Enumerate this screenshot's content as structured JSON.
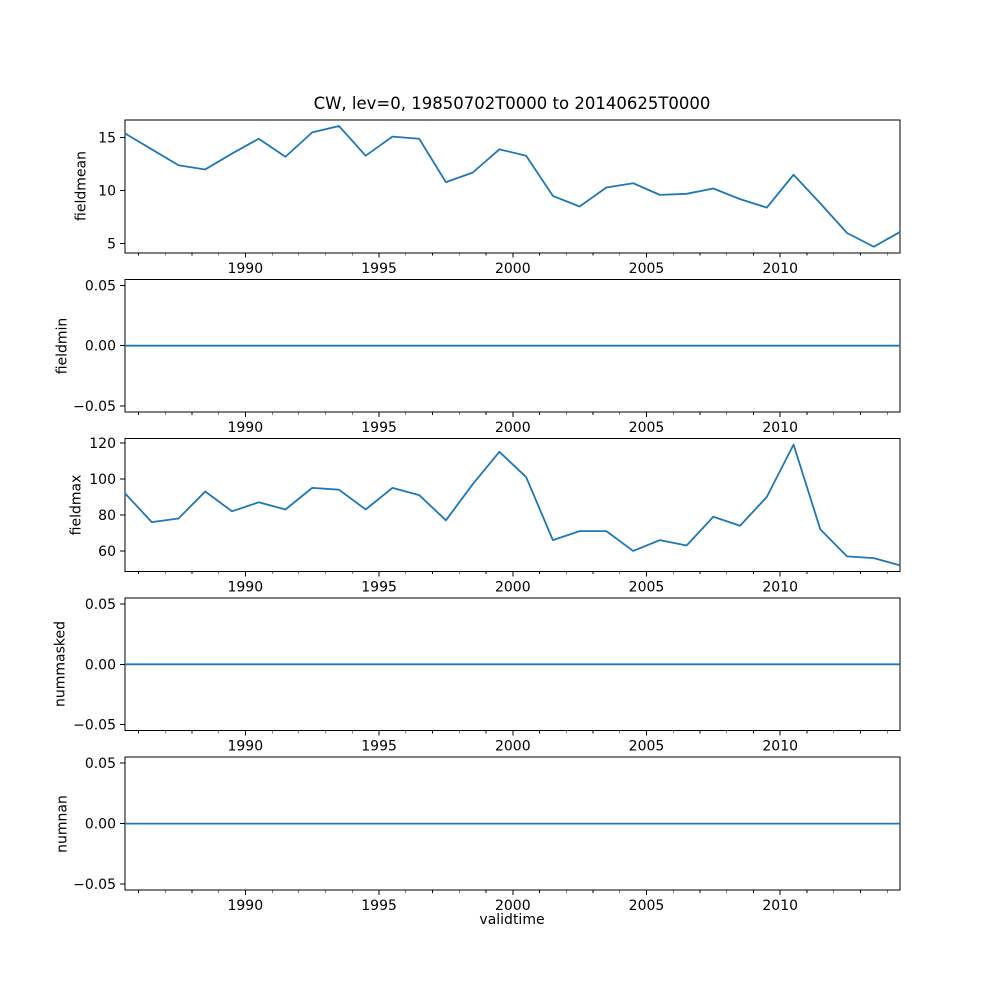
{
  "chart_data": {
    "type": "line",
    "title": "CW, lev=0, 19850702T0000 to 20140625T0000",
    "xlabel": "validtime",
    "line_color": "#1f77b4",
    "axis_color": "#000000",
    "background_color": "#ffffff",
    "grid": false,
    "legend_position": "none",
    "x": [
      1985.5,
      1986.5,
      1987.5,
      1988.5,
      1989.5,
      1990.5,
      1991.5,
      1992.5,
      1993.5,
      1994.5,
      1995.5,
      1996.5,
      1997.5,
      1998.5,
      1999.5,
      2000.5,
      2001.5,
      2002.5,
      2003.5,
      2004.5,
      2005.5,
      2006.5,
      2007.5,
      2008.5,
      2009.5,
      2010.5,
      2011.5,
      2012.5,
      2013.5,
      2014.48
    ],
    "xlim": [
      1985.5,
      2014.48
    ],
    "xticks": [
      1990,
      1995,
      2000,
      2005,
      2010
    ],
    "xtick_labels": [
      "1990",
      "1995",
      "2000",
      "2005",
      "2010"
    ],
    "minor_xtick_step_years": 1,
    "subplots": [
      {
        "ylabel": "fieldmean",
        "values": [
          15.4,
          13.9,
          12.4,
          12.0,
          13.5,
          14.9,
          13.2,
          15.5,
          16.1,
          13.3,
          15.1,
          14.9,
          10.8,
          11.7,
          13.9,
          13.3,
          9.5,
          8.5,
          10.3,
          10.7,
          9.6,
          9.7,
          10.2,
          9.2,
          8.4,
          11.5,
          8.8,
          6.0,
          4.7,
          6.1
        ],
        "ylim": [
          4.13,
          16.67
        ],
        "yticks": [
          5,
          10,
          15
        ],
        "ytick_labels": [
          "5",
          "10",
          "15"
        ]
      },
      {
        "ylabel": "fieldmin",
        "values": [
          0,
          0,
          0,
          0,
          0,
          0,
          0,
          0,
          0,
          0,
          0,
          0,
          0,
          0,
          0,
          0,
          0,
          0,
          0,
          0,
          0,
          0,
          0,
          0,
          0,
          0,
          0,
          0,
          0,
          0
        ],
        "ylim": [
          -0.055,
          0.055
        ],
        "yticks": [
          -0.05,
          0,
          0.05
        ],
        "ytick_labels": [
          "−0.05",
          "0.00",
          "0.05"
        ]
      },
      {
        "ylabel": "fieldmax",
        "values": [
          92,
          76,
          78,
          93,
          82,
          87,
          83,
          95,
          94,
          83,
          95,
          91,
          77,
          97,
          115,
          101,
          66,
          71,
          71,
          60,
          66,
          63,
          79,
          74,
          90,
          119,
          72,
          57,
          56,
          52
        ],
        "ylim": [
          48.65,
          122.35
        ],
        "yticks": [
          60,
          80,
          100,
          120
        ],
        "ytick_labels": [
          "60",
          "80",
          "100",
          "120"
        ]
      },
      {
        "ylabel": "nummasked",
        "values": [
          0,
          0,
          0,
          0,
          0,
          0,
          0,
          0,
          0,
          0,
          0,
          0,
          0,
          0,
          0,
          0,
          0,
          0,
          0,
          0,
          0,
          0,
          0,
          0,
          0,
          0,
          0,
          0,
          0,
          0
        ],
        "ylim": [
          -0.055,
          0.055
        ],
        "yticks": [
          -0.05,
          0,
          0.05
        ],
        "ytick_labels": [
          "−0.05",
          "0.00",
          "0.05"
        ]
      },
      {
        "ylabel": "numnan",
        "values": [
          0,
          0,
          0,
          0,
          0,
          0,
          0,
          0,
          0,
          0,
          0,
          0,
          0,
          0,
          0,
          0,
          0,
          0,
          0,
          0,
          0,
          0,
          0,
          0,
          0,
          0,
          0,
          0,
          0,
          0
        ],
        "ylim": [
          -0.055,
          0.055
        ],
        "yticks": [
          -0.05,
          0,
          0.05
        ],
        "ytick_labels": [
          "−0.05",
          "0.00",
          "0.05"
        ]
      }
    ]
  }
}
